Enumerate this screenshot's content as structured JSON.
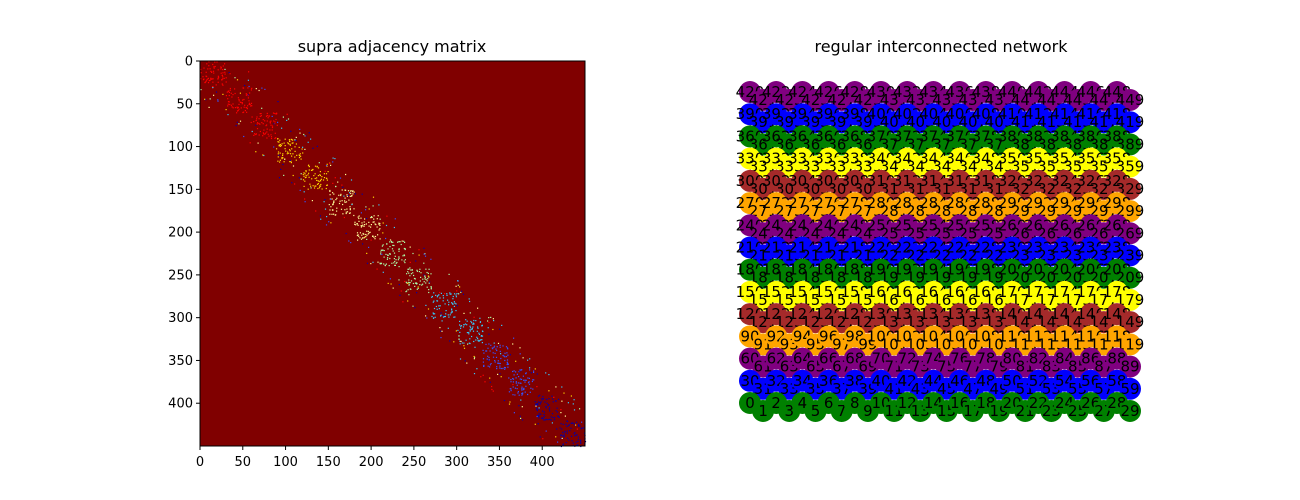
{
  "chart_data": [
    {
      "type": "heatmap",
      "title": "supra adjacency matrix",
      "xlabel": "",
      "ylabel": "",
      "size": 450,
      "xlim": [
        0,
        450
      ],
      "ylim": [
        450,
        0
      ],
      "x_ticks": [
        0,
        50,
        100,
        150,
        200,
        250,
        300,
        350,
        400
      ],
      "y_ticks": [
        0,
        50,
        100,
        150,
        200,
        250,
        300,
        350,
        400
      ],
      "background_value": 0,
      "background_color": "#800000",
      "block_size": 30,
      "blocks": 15,
      "point_colors": [
        "#ff0000",
        "#ffd700",
        "#ffff99",
        "#aaffaa",
        "#33ccff",
        "#3355ff",
        "#0000aa"
      ],
      "grid": false
    },
    {
      "type": "network",
      "title": "regular interconnected network",
      "layers": [
        {
          "color": "#008000",
          "nodes": [
            0,
            29
          ]
        },
        {
          "color": "#0000ff",
          "nodes": [
            30,
            59
          ]
        },
        {
          "color": "#800080",
          "nodes": [
            60,
            89
          ]
        },
        {
          "color": "#ffa500",
          "nodes": [
            90,
            119
          ]
        },
        {
          "color": "#a52a2a",
          "nodes": [
            120,
            149
          ]
        },
        {
          "color": "#ffff00",
          "nodes": [
            150,
            179
          ]
        },
        {
          "color": "#008000",
          "nodes": [
            180,
            209
          ]
        },
        {
          "color": "#0000ff",
          "nodes": [
            210,
            239
          ]
        },
        {
          "color": "#800080",
          "nodes": [
            240,
            269
          ]
        },
        {
          "color": "#ffa500",
          "nodes": [
            270,
            299
          ]
        },
        {
          "color": "#a52a2a",
          "nodes": [
            300,
            329
          ]
        },
        {
          "color": "#ffff00",
          "nodes": [
            330,
            359
          ]
        },
        {
          "color": "#008000",
          "nodes": [
            360,
            389
          ]
        },
        {
          "color": "#0000ff",
          "nodes": [
            390,
            419
          ]
        },
        {
          "color": "#800080",
          "nodes": [
            420,
            449
          ]
        }
      ],
      "nodes_per_layer": 30
    }
  ]
}
